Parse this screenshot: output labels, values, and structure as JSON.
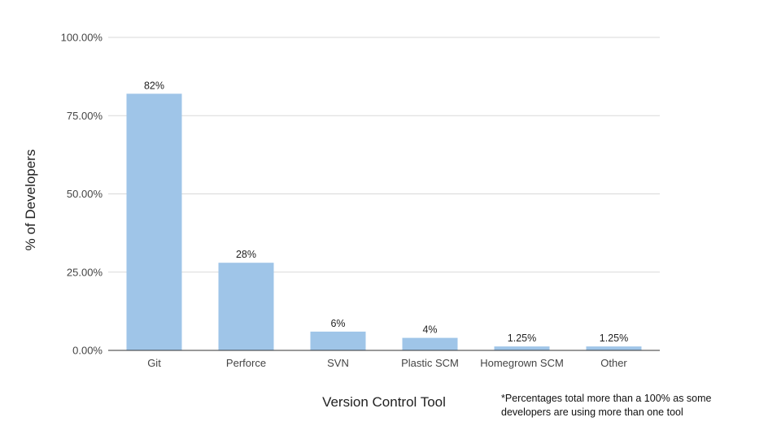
{
  "chart_data": {
    "type": "bar",
    "categories": [
      "Git",
      "Perforce",
      "SVN",
      "Plastic SCM",
      "Homegrown SCM",
      "Other"
    ],
    "values": [
      82,
      28,
      6,
      4,
      1.25,
      1.25
    ],
    "data_labels": [
      "82%",
      "28%",
      "6%",
      "4%",
      "1.25%",
      "1.25%"
    ],
    "xlabel": "Version Control Tool",
    "ylabel": "% of Developers",
    "ylim": [
      0,
      100
    ],
    "yticks": [
      0,
      25,
      50,
      75,
      100
    ],
    "ytick_labels": [
      "0.00%",
      "25.00%",
      "50.00%",
      "75.00%",
      "100.00%"
    ],
    "grid": true,
    "bar_color": "#9fc5e8",
    "footnote": "*Percentages total more than a 100% as some developers are using more than one tool"
  }
}
